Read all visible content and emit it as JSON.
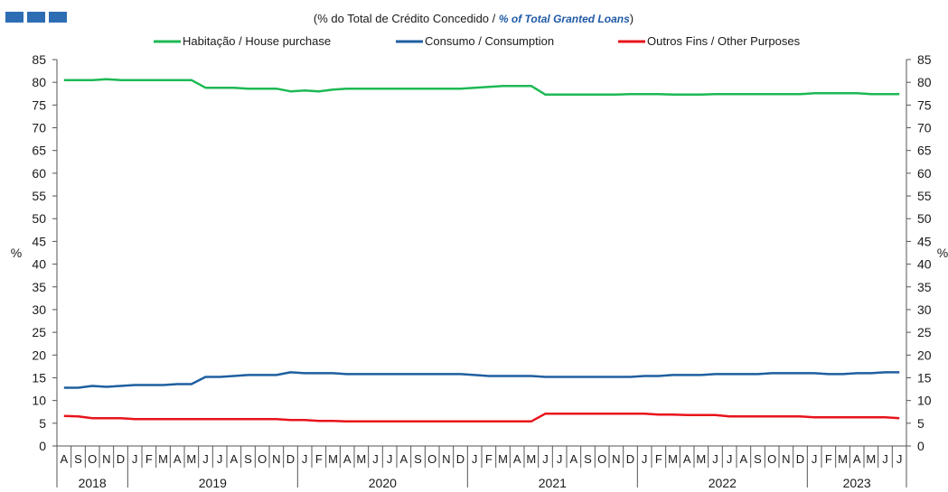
{
  "header": {
    "subtitle_pt": "(% do Total  de Crédito Concedido / ",
    "subtitle_en": "% of  Total Granted Loans",
    "subtitle_close": ")"
  },
  "colors": {
    "habitacao": "#1db954",
    "consumo": "#1f5fa0",
    "outros": "#e8141b",
    "header_block": "#2e6db4",
    "axis": "#555555"
  },
  "chart_data": {
    "type": "line",
    "ylabel_left": "%",
    "ylabel_right": "%",
    "ylim": [
      0,
      85
    ],
    "yticks": [
      0,
      5,
      10,
      15,
      20,
      25,
      30,
      35,
      40,
      45,
      50,
      55,
      60,
      65,
      70,
      75,
      80,
      85
    ],
    "legend_position": "top-center",
    "x_months": [
      "A",
      "S",
      "O",
      "N",
      "D",
      "J",
      "F",
      "M",
      "A",
      "M",
      "J",
      "J",
      "A",
      "S",
      "O",
      "N",
      "D",
      "J",
      "F",
      "M",
      "A",
      "M",
      "J",
      "J",
      "A",
      "S",
      "O",
      "N",
      "D",
      "J",
      "F",
      "M",
      "A",
      "M",
      "J",
      "J",
      "A",
      "S",
      "O",
      "N",
      "D",
      "J",
      "F",
      "M",
      "A",
      "M",
      "J",
      "J",
      "A",
      "S",
      "O",
      "N",
      "D",
      "J",
      "F",
      "M",
      "A",
      "M",
      "J",
      "J"
    ],
    "years": [
      {
        "label": "2018",
        "start": 0,
        "end": 4
      },
      {
        "label": "2019",
        "start": 5,
        "end": 16
      },
      {
        "label": "2020",
        "start": 17,
        "end": 28
      },
      {
        "label": "2021",
        "start": 29,
        "end": 40
      },
      {
        "label": "2022",
        "start": 41,
        "end": 52
      },
      {
        "label": "2023",
        "start": 53,
        "end": 59
      }
    ],
    "series": [
      {
        "name": "Habitação / House purchase",
        "key": "habitacao",
        "values": [
          80.5,
          80.5,
          80.5,
          80.7,
          80.5,
          80.5,
          80.5,
          80.5,
          80.5,
          80.5,
          78.8,
          78.8,
          78.8,
          78.6,
          78.6,
          78.6,
          78.0,
          78.2,
          78.0,
          78.4,
          78.6,
          78.6,
          78.6,
          78.6,
          78.6,
          78.6,
          78.6,
          78.6,
          78.6,
          78.8,
          79.0,
          79.2,
          79.2,
          79.2,
          77.3,
          77.3,
          77.3,
          77.3,
          77.3,
          77.3,
          77.4,
          77.4,
          77.4,
          77.3,
          77.3,
          77.3,
          77.4,
          77.4,
          77.4,
          77.4,
          77.4,
          77.4,
          77.4,
          77.6,
          77.6,
          77.6,
          77.6,
          77.4,
          77.4,
          77.4
        ]
      },
      {
        "name": "Consumo / Consumption",
        "key": "consumo",
        "values": [
          12.8,
          12.8,
          13.2,
          13.0,
          13.2,
          13.4,
          13.4,
          13.4,
          13.6,
          13.6,
          15.2,
          15.2,
          15.4,
          15.6,
          15.6,
          15.6,
          16.2,
          16.0,
          16.0,
          16.0,
          15.8,
          15.8,
          15.8,
          15.8,
          15.8,
          15.8,
          15.8,
          15.8,
          15.8,
          15.6,
          15.4,
          15.4,
          15.4,
          15.4,
          15.2,
          15.2,
          15.2,
          15.2,
          15.2,
          15.2,
          15.2,
          15.4,
          15.4,
          15.6,
          15.6,
          15.6,
          15.8,
          15.8,
          15.8,
          15.8,
          16.0,
          16.0,
          16.0,
          16.0,
          15.8,
          15.8,
          16.0,
          16.0,
          16.2,
          16.2
        ]
      },
      {
        "name": "Outros Fins / Other Purposes",
        "key": "outros",
        "values": [
          6.6,
          6.5,
          6.1,
          6.1,
          6.1,
          5.9,
          5.9,
          5.9,
          5.9,
          5.9,
          5.9,
          5.9,
          5.9,
          5.9,
          5.9,
          5.9,
          5.7,
          5.7,
          5.5,
          5.5,
          5.4,
          5.4,
          5.4,
          5.4,
          5.4,
          5.4,
          5.4,
          5.4,
          5.4,
          5.4,
          5.4,
          5.4,
          5.4,
          5.4,
          7.1,
          7.1,
          7.1,
          7.1,
          7.1,
          7.1,
          7.1,
          7.1,
          6.9,
          6.9,
          6.8,
          6.8,
          6.8,
          6.5,
          6.5,
          6.5,
          6.5,
          6.5,
          6.5,
          6.3,
          6.3,
          6.3,
          6.3,
          6.3,
          6.3,
          6.1
        ]
      }
    ]
  }
}
